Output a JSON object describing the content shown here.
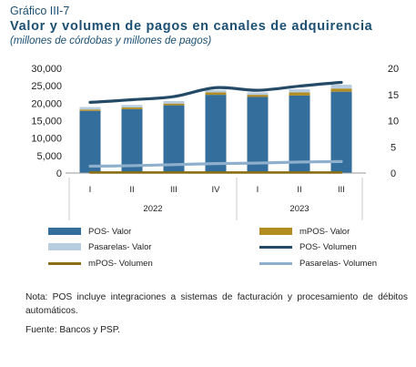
{
  "header": {
    "figure_number": "Gráfico III-7",
    "title": "Valor y volumen de pagos en canales de adquirencia",
    "subtitle": "(millones de córdobas y millones de pagos)"
  },
  "colors": {
    "pos_valor": "#336e9c",
    "mpos_valor": "#b08c22",
    "pasarelas_valor": "#b8cde0",
    "pos_volumen": "#234a66",
    "mpos_volumen": "#8a6e13",
    "pasarelas_volumen": "#8fb0cc"
  },
  "chart_data": {
    "type": "bar",
    "stacked": true,
    "categories": [
      "I",
      "II",
      "III",
      "IV",
      "I",
      "II",
      "III"
    ],
    "year_groups": [
      {
        "label": "2022",
        "categories": [
          "I",
          "II",
          "III",
          "IV"
        ]
      },
      {
        "label": "2023",
        "categories": [
          "I",
          "II",
          "III"
        ]
      }
    ],
    "left_axis": {
      "min": 0,
      "max": 30000,
      "ticks": [
        "0",
        "5,000",
        "10,000",
        "15,000",
        "20,000",
        "25,000",
        "30,000"
      ]
    },
    "right_axis": {
      "min": 0,
      "max": 20,
      "ticks": [
        "0",
        "5",
        "10",
        "15",
        "20"
      ]
    },
    "bar_series": [
      {
        "name": "POS- Valor",
        "values": [
          17800,
          18300,
          19400,
          22400,
          21800,
          22200,
          23300
        ]
      },
      {
        "name": "mPOS- Valor",
        "values": [
          400,
          500,
          500,
          700,
          600,
          900,
          900
        ]
      },
      {
        "name": "Pasarelas- Valor",
        "values": [
          700,
          700,
          700,
          700,
          700,
          900,
          1100
        ]
      }
    ],
    "line_series": [
      {
        "name": "POS- Volumen",
        "axis": "right",
        "values": [
          13.5,
          14.0,
          14.6,
          16.3,
          15.8,
          16.6,
          17.3
        ]
      },
      {
        "name": "mPOS- Volumen",
        "axis": "right",
        "values": [
          0.1,
          0.1,
          0.1,
          0.1,
          0.1,
          0.1,
          0.1
        ]
      },
      {
        "name": "Pasarelas- Volumen",
        "axis": "right",
        "values": [
          1.3,
          1.4,
          1.6,
          1.8,
          1.9,
          2.1,
          2.2
        ]
      }
    ],
    "legend": {
      "position": "bottom",
      "items": [
        {
          "label": "POS- Valor",
          "kind": "bar",
          "color_key": "pos_valor"
        },
        {
          "label": "mPOS- Valor",
          "kind": "bar",
          "color_key": "mpos_valor"
        },
        {
          "label": "Pasarelas- Valor",
          "kind": "bar",
          "color_key": "pasarelas_valor"
        },
        {
          "label": "POS- Volumen",
          "kind": "line",
          "color_key": "pos_volumen"
        },
        {
          "label": "mPOS- Volumen",
          "kind": "line",
          "color_key": "mpos_volumen"
        },
        {
          "label": "Pasarelas- Volumen",
          "kind": "line",
          "color_key": "pasarelas_volumen"
        }
      ]
    },
    "grid": false
  },
  "notes": {
    "note": "Nota: POS incluye integraciones a sistemas de facturación y procesamiento de débitos automáticos.",
    "source": "Fuente: Bancos y PSP."
  }
}
